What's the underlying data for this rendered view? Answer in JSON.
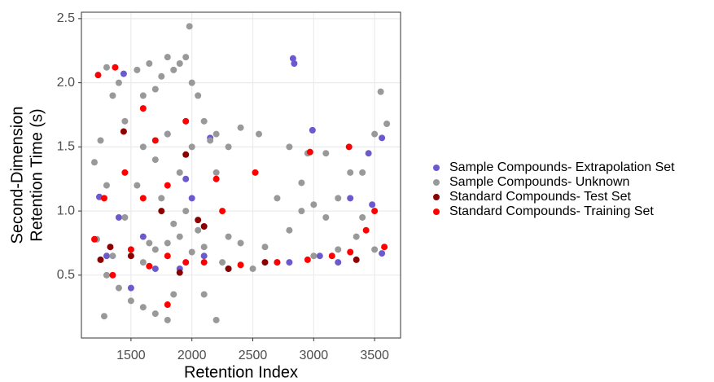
{
  "chart_data": {
    "type": "scatter",
    "xlabel": "Retention Index",
    "ylabel": [
      "Second-Dimension",
      "Retention Time (s)"
    ],
    "xlim": [
      1093,
      3713
    ],
    "ylim": [
      0.01,
      2.55
    ],
    "xticks": [
      1500,
      2000,
      2500,
      3000,
      3500
    ],
    "yticks": [
      0.5,
      {
        "value": 1.0,
        "label": "1.0"
      },
      1.5,
      {
        "value": 2.0,
        "label": "2.0"
      },
      2.5
    ],
    "grid": true,
    "legend": "right",
    "series": [
      {
        "name": "Sample Compounds- Extrapolation Set",
        "color": "#6a5acd",
        "x": [
          2830,
          2840,
          1440,
          2990,
          3560,
          3450,
          1800,
          2150,
          3300,
          1950,
          1240,
          1400,
          1300,
          1500,
          1700,
          1900,
          2100,
          2800,
          3200,
          3560,
          2300,
          3050,
          1600,
          2000,
          3480
        ],
        "values": [
          2.19,
          2.15,
          2.07,
          1.63,
          1.57,
          1.45,
          1.6,
          1.57,
          1.1,
          1.25,
          1.11,
          0.95,
          0.65,
          0.4,
          0.55,
          0.55,
          0.65,
          0.6,
          0.6,
          0.67,
          0.55,
          0.65,
          0.8,
          1.1,
          1.05
        ]
      },
      {
        "name": "Sample Compounds- Unknown",
        "color": "#999999",
        "x": [
          1300,
          1350,
          1400,
          1250,
          1300,
          1450,
          1550,
          1600,
          1650,
          1700,
          1750,
          1800,
          1850,
          1900,
          1950,
          1980,
          2000,
          2050,
          2100,
          2150,
          2200,
          2300,
          2400,
          2550,
          2200,
          1600,
          1700,
          1800,
          1900,
          2000,
          1750,
          1850,
          1950,
          2050,
          1650,
          1700,
          1800,
          1900,
          2000,
          2100,
          2300,
          2400,
          2600,
          2800,
          2900,
          3000,
          3100,
          3200,
          3400,
          3550,
          3500,
          3300,
          2700,
          2800,
          2950,
          3100,
          3350,
          3500,
          1300,
          1400,
          1500,
          1600,
          1700,
          1800,
          1850,
          2100,
          2200,
          1280,
          1350,
          1450,
          1550,
          1600,
          2250,
          2500,
          2700,
          3000,
          3200,
          1200,
          1220,
          3600,
          3400,
          2900
        ],
        "values": [
          2.12,
          1.9,
          2.0,
          1.55,
          1.2,
          1.7,
          2.1,
          1.9,
          2.15,
          1.95,
          2.05,
          2.2,
          2.1,
          2.15,
          2.2,
          2.44,
          2.0,
          1.9,
          1.7,
          1.55,
          1.6,
          1.5,
          1.65,
          1.6,
          1.3,
          1.5,
          1.4,
          1.6,
          1.3,
          1.5,
          1.1,
          0.9,
          1.0,
          0.85,
          0.75,
          0.7,
          0.75,
          0.8,
          0.68,
          0.72,
          0.8,
          0.75,
          0.72,
          0.85,
          1.0,
          1.05,
          0.95,
          1.1,
          1.3,
          1.93,
          1.6,
          1.3,
          1.1,
          1.5,
          1.45,
          1.45,
          0.8,
          0.7,
          0.5,
          0.4,
          0.3,
          0.25,
          0.2,
          0.15,
          0.35,
          0.35,
          0.15,
          0.18,
          0.65,
          0.95,
          1.2,
          0.6,
          0.6,
          0.55,
          0.6,
          0.65,
          0.7,
          1.38,
          0.78,
          1.68,
          0.95,
          1.22
        ]
      },
      {
        "name": "Standard Compounds- Test Set",
        "color": "#8b0000",
        "x": [
          1440,
          1330,
          1250,
          1500,
          1950,
          2050,
          1750,
          2100,
          2300,
          2600,
          3350,
          1900
        ],
        "values": [
          1.62,
          0.72,
          0.62,
          0.65,
          1.44,
          0.93,
          1.0,
          0.88,
          0.55,
          0.6,
          0.62,
          0.52
        ]
      },
      {
        "name": "Standard Compounds- Training Set",
        "color": "#ff0000",
        "x": [
          1230,
          1370,
          1280,
          1450,
          1600,
          1700,
          1800,
          1950,
          2200,
          2520,
          2970,
          3290,
          3500,
          1200,
          1350,
          1500,
          1650,
          1800,
          1950,
          2100,
          2400,
          2700,
          2950,
          3150,
          3300,
          3580,
          1800,
          1600,
          2250,
          3430
        ],
        "values": [
          2.06,
          2.12,
          1.1,
          1.3,
          1.8,
          1.55,
          1.2,
          1.7,
          1.25,
          1.3,
          1.46,
          1.5,
          1.0,
          0.78,
          0.5,
          0.7,
          0.57,
          0.65,
          0.6,
          0.6,
          0.58,
          0.6,
          0.62,
          0.65,
          0.68,
          0.72,
          0.27,
          1.1,
          1.0,
          0.85
        ]
      }
    ]
  }
}
